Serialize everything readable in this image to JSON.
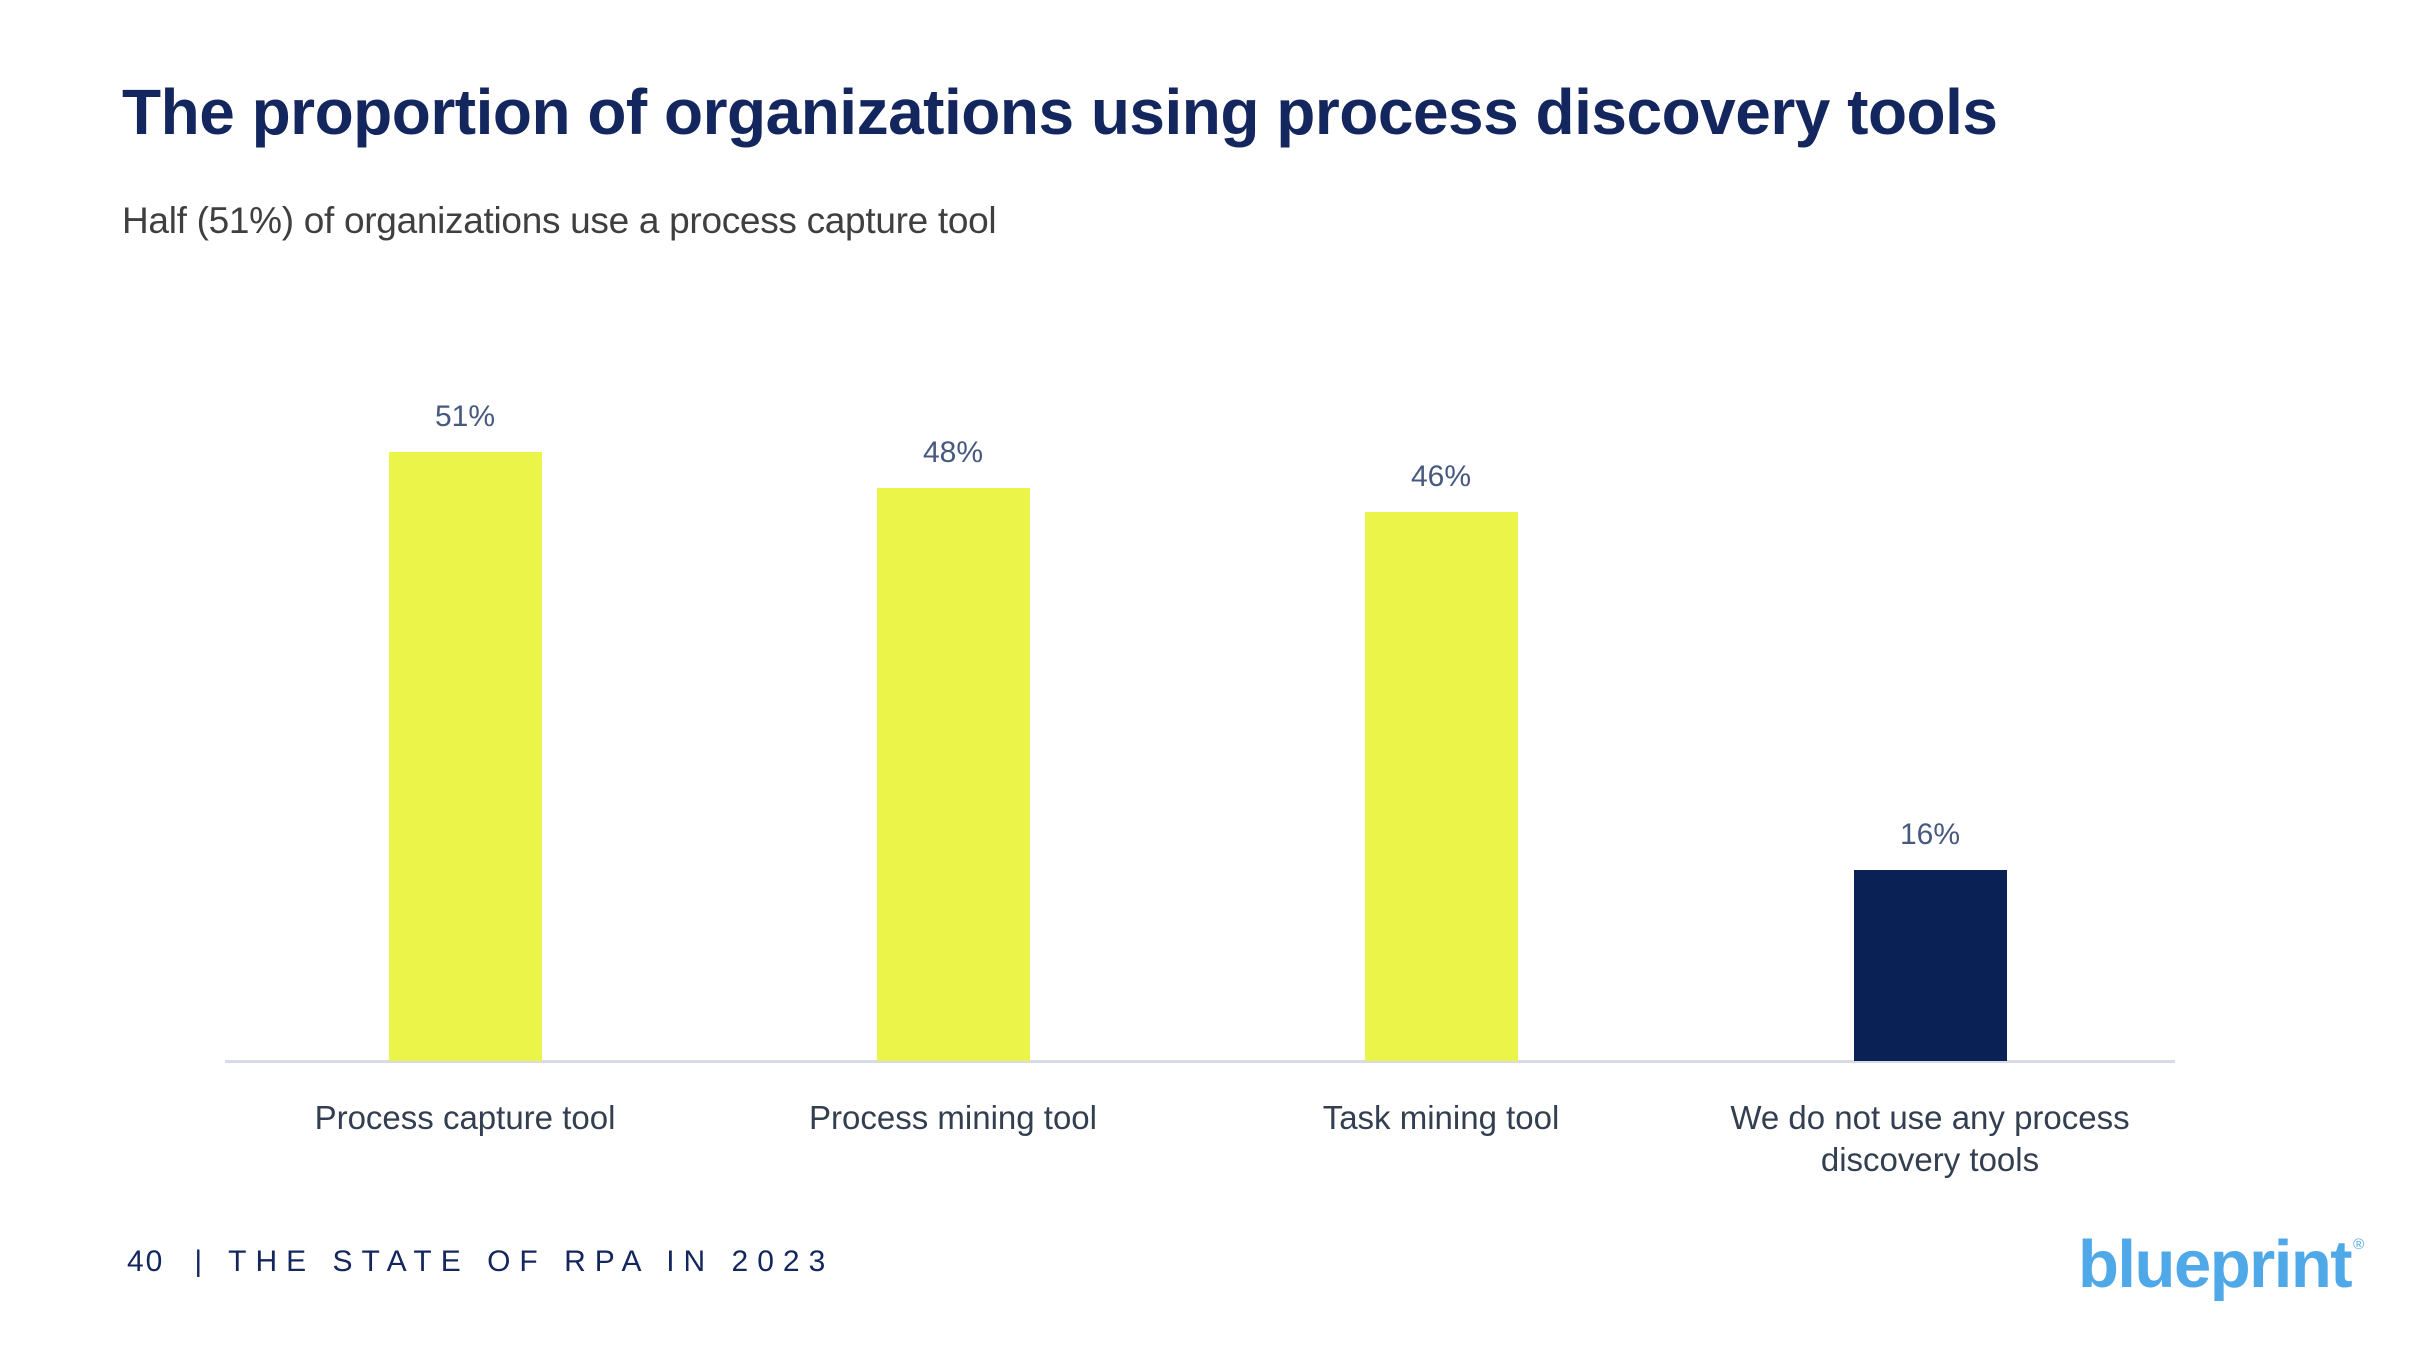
{
  "header": {
    "title": "The proportion of organizations using process discovery tools",
    "subtitle": "Half (51%) of organizations use a process capture tool"
  },
  "chart_data": {
    "type": "bar",
    "title": "The proportion of organizations using process discovery tools",
    "categories": [
      "Process capture tool",
      "Process mining tool",
      "Task mining tool",
      "We do not use any process discovery tools"
    ],
    "values": [
      51,
      48,
      46,
      16
    ],
    "value_labels": [
      "51%",
      "48%",
      "46%",
      "16%"
    ],
    "unit": "%",
    "bar_colors": [
      "#EBF549",
      "#EBF549",
      "#EBF549",
      "#0A2156"
    ],
    "value_label_color": "#47597F",
    "category_label_color": "#333F50",
    "axis_line_color": "#D8DBE5",
    "xlabel": "",
    "ylabel": "",
    "ylim": [
      0,
      55
    ],
    "grid": false,
    "legend": "none"
  },
  "footer": {
    "page_number": "40",
    "separator": "|",
    "report_title": "THE STATE OF RPA IN 2023"
  },
  "logo": {
    "text": "blueprint",
    "mark": "®",
    "color": "#4FA8E8"
  }
}
